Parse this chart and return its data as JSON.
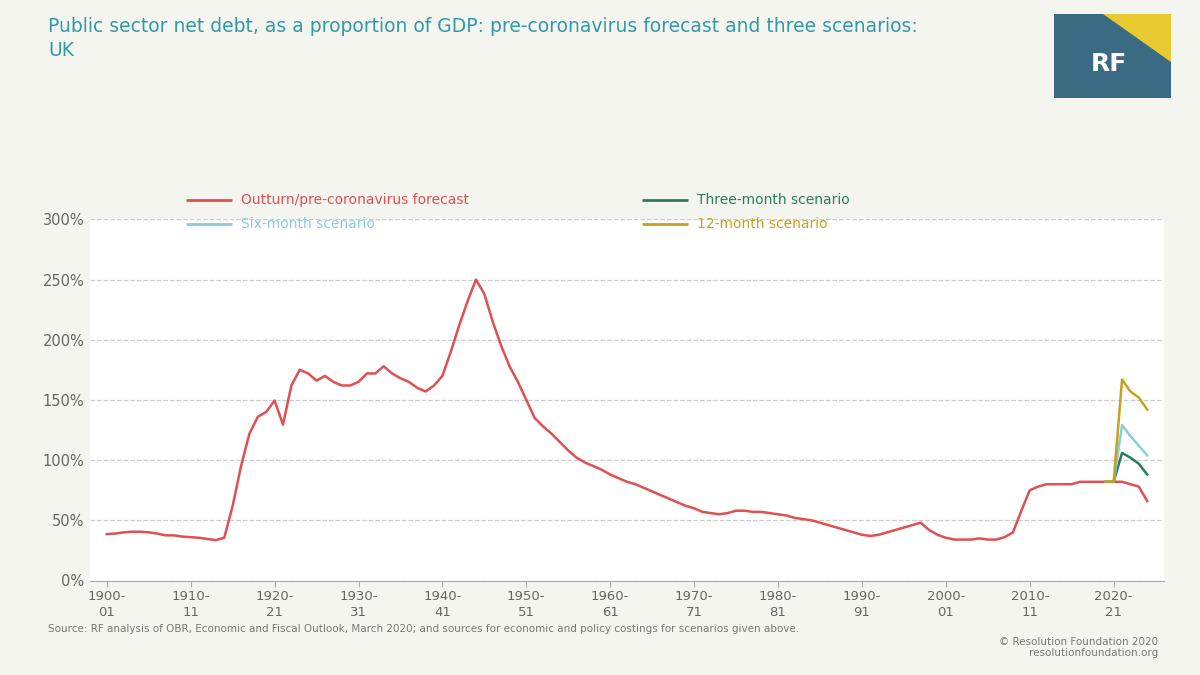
{
  "title": "Public sector net debt, as a proportion of GDP: pre-coronavirus forecast and three scenarios:\nUK",
  "source_text": "Source: RF analysis of OBR, Economic and Fiscal Outlook, March 2020; and sources for economic and policy costings for scenarios given above.",
  "copyright_text": "© Resolution Foundation 2020\nresolutionfoundation.org",
  "background_color": "#f5f5f0",
  "plot_bg_color": "#ffffff",
  "title_color": "#3399aa",
  "grid_color": "#cccccc",
  "ylim": [
    0,
    3.0
  ],
  "yticks": [
    0,
    0.5,
    1.0,
    1.5,
    2.0,
    2.5,
    3.0
  ],
  "xtick_labels": [
    "1900-\n01",
    "1910-\n11",
    "1920-\n21",
    "1930-\n31",
    "1940-\n41",
    "1950-\n51",
    "1960-\n61",
    "1970-\n71",
    "1980-\n81",
    "1990-\n91",
    "2000-\n01",
    "2010-\n11",
    "2020-\n21"
  ],
  "legend": [
    {
      "label": "Outturn/pre-coronavirus forecast",
      "color": "#e05050",
      "row": 0,
      "col": 0
    },
    {
      "label": "Three-month scenario",
      "color": "#2a7d5c",
      "row": 0,
      "col": 1
    },
    {
      "label": "Six-month scenario",
      "color": "#88ccdd",
      "row": 1,
      "col": 0
    },
    {
      "label": "12-month scenario",
      "color": "#c8a020",
      "row": 1,
      "col": 1
    }
  ],
  "series": {
    "outturn": {
      "color": "#e05050",
      "lw": 1.8,
      "years": [
        1900,
        1901,
        1902,
        1903,
        1904,
        1905,
        1906,
        1907,
        1908,
        1909,
        1910,
        1911,
        1912,
        1913,
        1914,
        1915,
        1916,
        1917,
        1918,
        1919,
        1920,
        1921,
        1922,
        1923,
        1924,
        1925,
        1926,
        1927,
        1928,
        1929,
        1930,
        1931,
        1932,
        1933,
        1934,
        1935,
        1936,
        1937,
        1938,
        1939,
        1940,
        1941,
        1942,
        1943,
        1944,
        1945,
        1946,
        1947,
        1948,
        1949,
        1950,
        1951,
        1952,
        1953,
        1954,
        1955,
        1956,
        1957,
        1958,
        1959,
        1960,
        1961,
        1962,
        1963,
        1964,
        1965,
        1966,
        1967,
        1968,
        1969,
        1970,
        1971,
        1972,
        1973,
        1974,
        1975,
        1976,
        1977,
        1978,
        1979,
        1980,
        1981,
        1982,
        1983,
        1984,
        1985,
        1986,
        1987,
        1988,
        1989,
        1990,
        1991,
        1992,
        1993,
        1994,
        1995,
        1996,
        1997,
        1998,
        1999,
        2000,
        2001,
        2002,
        2003,
        2004,
        2005,
        2006,
        2007,
        2008,
        2009,
        2010,
        2011,
        2012,
        2013,
        2014,
        2015,
        2016,
        2017,
        2018,
        2019,
        2020,
        2021,
        2022,
        2023,
        2024
      ],
      "values": [
        0.385,
        0.39,
        0.4,
        0.405,
        0.405,
        0.4,
        0.39,
        0.375,
        0.375,
        0.365,
        0.36,
        0.355,
        0.345,
        0.335,
        0.355,
        0.62,
        0.95,
        1.22,
        1.36,
        1.4,
        1.495,
        1.295,
        1.62,
        1.75,
        1.72,
        1.66,
        1.7,
        1.65,
        1.62,
        1.62,
        1.65,
        1.72,
        1.72,
        1.78,
        1.72,
        1.68,
        1.65,
        1.6,
        1.57,
        1.62,
        1.7,
        1.9,
        2.12,
        2.32,
        2.5,
        2.38,
        2.15,
        1.95,
        1.78,
        1.65,
        1.5,
        1.35,
        1.28,
        1.22,
        1.15,
        1.08,
        1.02,
        0.98,
        0.95,
        0.92,
        0.88,
        0.85,
        0.82,
        0.8,
        0.77,
        0.74,
        0.71,
        0.68,
        0.65,
        0.62,
        0.6,
        0.57,
        0.56,
        0.55,
        0.56,
        0.58,
        0.58,
        0.57,
        0.57,
        0.56,
        0.55,
        0.54,
        0.52,
        0.51,
        0.5,
        0.48,
        0.46,
        0.44,
        0.42,
        0.4,
        0.38,
        0.37,
        0.38,
        0.4,
        0.42,
        0.44,
        0.46,
        0.48,
        0.42,
        0.38,
        0.355,
        0.34,
        0.34,
        0.34,
        0.35,
        0.34,
        0.34,
        0.36,
        0.4,
        0.58,
        0.75,
        0.78,
        0.8,
        0.8,
        0.8,
        0.8,
        0.82,
        0.82,
        0.82,
        0.82,
        0.82,
        0.82,
        0.8,
        0.78,
        0.66
      ]
    },
    "three_month": {
      "color": "#2a7d5c",
      "lw": 1.8,
      "years": [
        2019,
        2020,
        2021,
        2022,
        2023,
        2024
      ],
      "values": [
        0.82,
        0.82,
        1.06,
        1.02,
        0.97,
        0.88
      ]
    },
    "six_month": {
      "color": "#88ccdd",
      "lw": 1.8,
      "years": [
        2019,
        2020,
        2021,
        2022,
        2023,
        2024
      ],
      "values": [
        0.82,
        0.82,
        1.29,
        1.2,
        1.12,
        1.04
      ]
    },
    "twelve_month": {
      "color": "#c8a020",
      "lw": 1.8,
      "years": [
        2019,
        2020,
        2021,
        2022,
        2023,
        2024
      ],
      "values": [
        0.82,
        0.82,
        1.67,
        1.57,
        1.52,
        1.42
      ]
    }
  },
  "logo": {
    "bg_color": "#3a6b82",
    "triangle_color": "#e8c930",
    "text": "RF",
    "text_color": "#ffffff"
  }
}
